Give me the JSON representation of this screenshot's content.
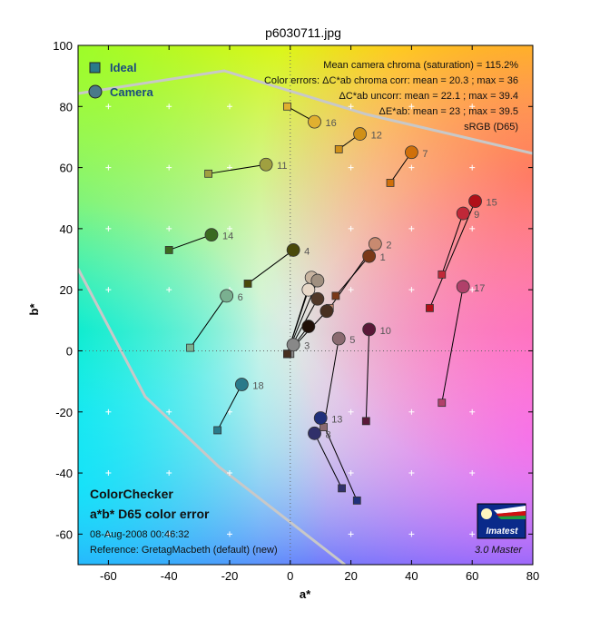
{
  "chart_data": {
    "type": "scatter",
    "title": "p6030711.jpg",
    "xlabel": "a*",
    "ylabel": "b*",
    "xlim": [
      -70,
      80
    ],
    "ylim": [
      -70,
      100
    ],
    "x_ticks": [
      -60,
      -40,
      -20,
      0,
      20,
      40,
      60,
      80
    ],
    "y_ticks": [
      -60,
      -40,
      -20,
      0,
      20,
      40,
      60,
      80,
      100
    ],
    "legend": {
      "placement": "top-left",
      "entries": [
        "Ideal",
        "Camera"
      ]
    },
    "stats": [
      "Mean camera chroma (saturation) = 115.2%",
      "Color errors: ΔC*ab chroma corr:  mean = 20.3 ;  max = 36",
      "ΔC*ab uncorr:  mean = 22.1 ;  max = 39.4",
      "ΔE*ab:  mean = 23 ;  max = 39.5",
      "sRGB (D65)"
    ],
    "footer": {
      "title": "ColorChecker",
      "subtitle": "a*b* D65 color error",
      "date": "08-Aug-2008 00:46:32",
      "reference": "Reference: GretagMacbeth (default) (new)",
      "version": "3.0  Master",
      "logo_text": "Imatest"
    },
    "patches": [
      {
        "id": "1",
        "ideal": [
          15,
          18
        ],
        "camera": [
          26,
          31
        ],
        "color": "#7a3818"
      },
      {
        "id": "2",
        "ideal": [
          13,
          14
        ],
        "camera": [
          28,
          35
        ],
        "color": "#c88a70"
      },
      {
        "id": "3",
        "ideal": [
          0,
          -1
        ],
        "camera": [
          1,
          2
        ],
        "color": "#888888"
      },
      {
        "id": "4",
        "ideal": [
          -14,
          22
        ],
        "camera": [
          1,
          33
        ],
        "color": "#4a4a0a"
      },
      {
        "id": "5",
        "ideal": [
          11,
          -25
        ],
        "camera": [
          16,
          4
        ],
        "color": "#8a6a70"
      },
      {
        "id": "6",
        "ideal": [
          -33,
          1
        ],
        "camera": [
          -21,
          18
        ],
        "color": "#7ab090"
      },
      {
        "id": "7",
        "ideal": [
          33,
          55
        ],
        "camera": [
          40,
          65
        ],
        "color": "#d0700a"
      },
      {
        "id": "8",
        "ideal": [
          17,
          -45
        ],
        "camera": [
          8,
          -27
        ],
        "color": "#30306a"
      },
      {
        "id": "9",
        "ideal": [
          50,
          25
        ],
        "camera": [
          57,
          45
        ],
        "color": "#c02838"
      },
      {
        "id": "10",
        "ideal": [
          25,
          -23
        ],
        "camera": [
          26,
          7
        ],
        "color": "#5a1838"
      },
      {
        "id": "11",
        "ideal": [
          -27,
          58
        ],
        "camera": [
          -8,
          61
        ],
        "color": "#a0a040"
      },
      {
        "id": "12",
        "ideal": [
          16,
          66
        ],
        "camera": [
          23,
          71
        ],
        "color": "#d09018"
      },
      {
        "id": "13",
        "ideal": [
          22,
          -49
        ],
        "camera": [
          10,
          -22
        ],
        "color": "#20307a"
      },
      {
        "id": "14",
        "ideal": [
          -40,
          33
        ],
        "camera": [
          -26,
          38
        ],
        "color": "#3a6a20"
      },
      {
        "id": "15",
        "ideal": [
          46,
          14
        ],
        "camera": [
          61,
          49
        ],
        "color": "#b01018"
      },
      {
        "id": "16",
        "ideal": [
          -1,
          80
        ],
        "camera": [
          8,
          75
        ],
        "color": "#e0b030"
      },
      {
        "id": "17",
        "ideal": [
          50,
          -17
        ],
        "camera": [
          57,
          21
        ],
        "color": "#b0406a"
      },
      {
        "id": "18",
        "ideal": [
          -24,
          -26
        ],
        "camera": [
          -16,
          -11
        ],
        "color": "#2a7a8a"
      },
      {
        "id": "",
        "ideal": [
          -1,
          -1
        ],
        "camera": [
          7,
          24
        ],
        "color": "#c8b4a0"
      },
      {
        "id": "",
        "ideal": [
          -1,
          -1
        ],
        "camera": [
          6,
          20
        ],
        "color": "#e8d8c8"
      },
      {
        "id": "",
        "ideal": [
          -1,
          -1
        ],
        "camera": [
          9,
          23
        ],
        "color": "#a09080"
      },
      {
        "id": "",
        "ideal": [
          -1,
          -1
        ],
        "camera": [
          9,
          17
        ],
        "color": "#503828"
      },
      {
        "id": "",
        "ideal": [
          -1,
          -1
        ],
        "camera": [
          6,
          8
        ],
        "color": "#201008"
      },
      {
        "id": "",
        "ideal": [
          -1,
          -1
        ],
        "camera": [
          12,
          13
        ],
        "color": "#483020"
      }
    ]
  }
}
